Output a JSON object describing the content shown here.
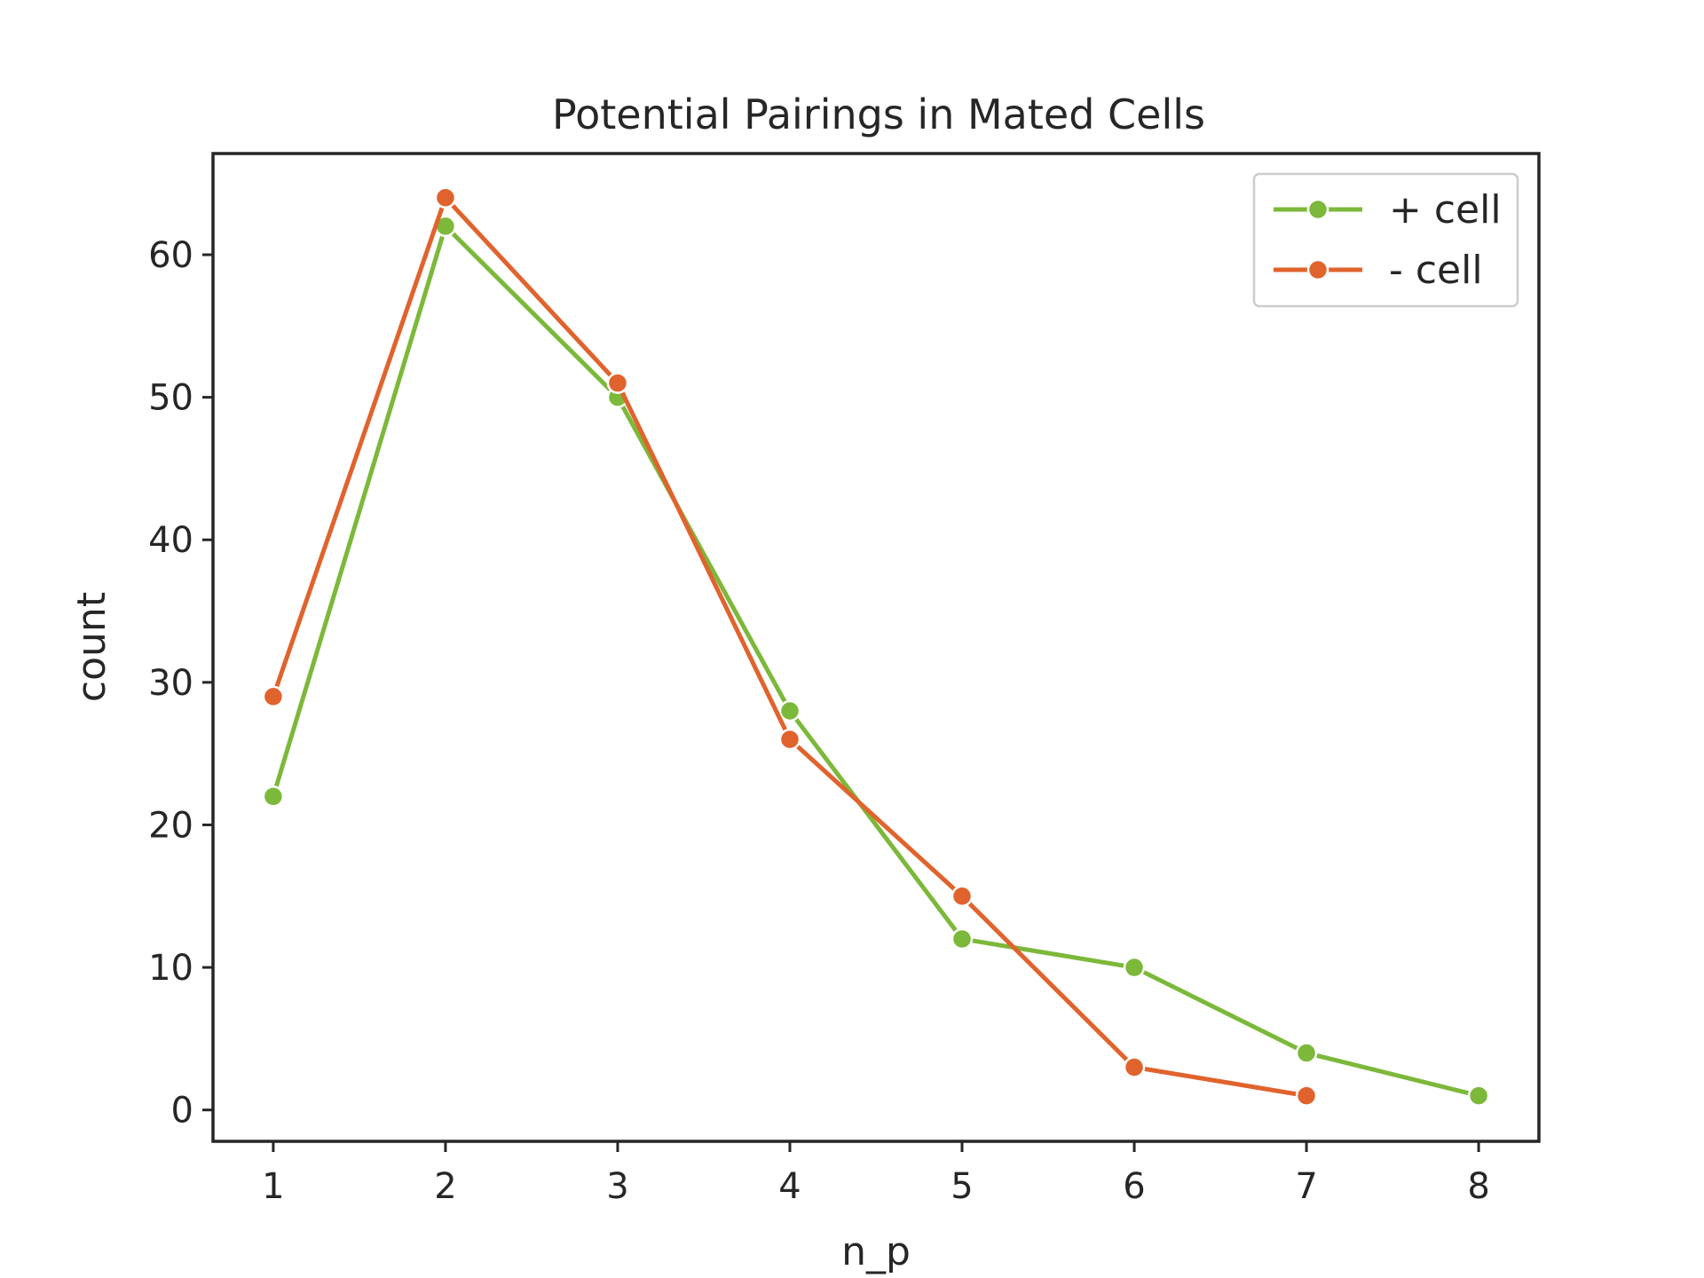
{
  "chart_data": {
    "type": "line",
    "title": "Potential Pairings in Mated Cells",
    "xlabel": "n_p",
    "ylabel": "count",
    "x": [
      1,
      2,
      3,
      4,
      5,
      6,
      7,
      8
    ],
    "xlim": [
      0.65,
      8.35
    ],
    "ylim": [
      -2.2,
      67.1
    ],
    "xticks": [
      "1",
      "2",
      "3",
      "4",
      "5",
      "6",
      "7",
      "8"
    ],
    "yticks": [
      "0",
      "10",
      "20",
      "30",
      "40",
      "50",
      "60"
    ],
    "legend_position": "top-right",
    "grid": false,
    "series": [
      {
        "name": "+ cell",
        "color": "#7cb83a",
        "x": [
          1,
          2,
          3,
          4,
          5,
          6,
          7,
          8
        ],
        "values": [
          22,
          62,
          50,
          28,
          12,
          10,
          4,
          1
        ]
      },
      {
        "name": "- cell",
        "color": "#e0632d",
        "x": [
          1,
          2,
          3,
          4,
          5,
          6,
          7
        ],
        "values": [
          29,
          64,
          51,
          26,
          15,
          3,
          1
        ]
      }
    ]
  }
}
